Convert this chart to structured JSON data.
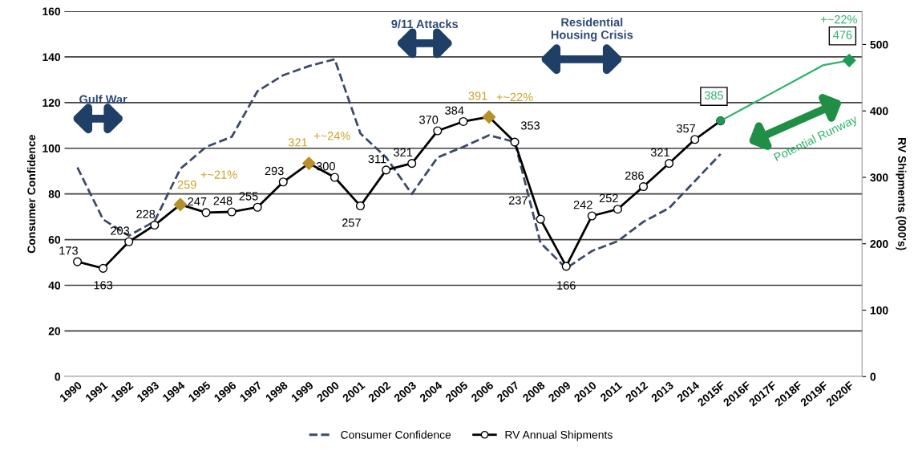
{
  "chart_data": {
    "type": "line",
    "ylabel": "Consumer Confidence",
    "y2label": "RV Shipments (000's)",
    "categories": [
      "1990",
      "1991",
      "1992",
      "1993",
      "1994",
      "1995",
      "1996",
      "1997",
      "1998",
      "1999",
      "2000",
      "2001",
      "2002",
      "2003",
      "2004",
      "2005",
      "2006",
      "2007",
      "2008",
      "2009",
      "2010",
      "2011",
      "2012",
      "2013",
      "2014",
      "2015F",
      "2016F",
      "2017F",
      "2018F",
      "2019F",
      "2020F"
    ],
    "ylim": [
      0,
      160
    ],
    "yticks": [
      0,
      20,
      40,
      60,
      80,
      100,
      120,
      140,
      160
    ],
    "y2lim": [
      0,
      550
    ],
    "y2ticks": [
      0,
      100,
      200,
      300,
      400,
      500
    ],
    "grid": "y",
    "legend": "bottom",
    "series": [
      {
        "name": "Consumer Confidence",
        "color": "#3b4a6b",
        "line_style": "dashed",
        "marker": "none",
        "values": [
          91.6,
          68.8,
          61.7,
          68,
          91,
          100.6,
          105,
          125,
          132,
          136,
          139,
          106.5,
          96,
          80,
          96,
          100.6,
          105.7,
          102.8,
          58.6,
          47.4,
          55,
          59.3,
          67.8,
          73.8,
          85.6,
          97.5,
          null,
          null,
          null,
          null,
          null
        ]
      },
      {
        "name": "RV Annual Shipments",
        "color": "#000000",
        "axis": "y2",
        "marker": "circle",
        "line_style": "solid",
        "values": [
          173,
          163,
          203,
          228,
          259,
          247,
          248,
          255,
          293,
          321,
          300,
          257,
          311,
          321,
          370,
          384,
          391,
          353,
          237,
          166,
          242,
          252,
          286,
          321,
          357,
          385,
          null,
          null,
          null,
          null,
          null
        ],
        "value_labels": [
          "173",
          "163",
          "203",
          "228",
          null,
          "247",
          "248",
          "255",
          "293",
          null,
          "300",
          "257",
          "311",
          "321",
          "370",
          "384",
          null,
          "353",
          "237",
          "166",
          "242",
          "252",
          "286",
          "321",
          "357",
          null,
          null,
          null,
          null,
          null,
          null
        ]
      },
      {
        "type": "scatter",
        "color": "#b8902a",
        "axis": "y2",
        "marker": "diamond",
        "values": [
          null,
          null,
          null,
          null,
          259,
          null,
          null,
          null,
          null,
          321,
          null,
          null,
          null,
          null,
          null,
          null,
          391,
          null,
          null,
          null,
          null,
          null,
          null,
          null,
          null,
          null,
          null,
          null,
          null,
          null,
          null
        ],
        "value_labels": [
          null,
          null,
          null,
          null,
          "259",
          null,
          null,
          null,
          null,
          "321",
          null,
          null,
          null,
          null,
          null,
          null,
          "391",
          null,
          null,
          null,
          null,
          null,
          null,
          null,
          null,
          null,
          null,
          null,
          null,
          null,
          null
        ]
      },
      {
        "color": "#2db36b",
        "axis": "y2",
        "marker": "none",
        "line_style": "solid",
        "values": [
          null,
          null,
          null,
          null,
          null,
          null,
          null,
          null,
          null,
          null,
          null,
          null,
          null,
          null,
          null,
          null,
          null,
          null,
          null,
          null,
          null,
          null,
          null,
          null,
          null,
          385,
          406,
          427,
          448,
          469,
          476
        ]
      },
      {
        "type": "scatter",
        "color": "#1f9a55",
        "axis": "y2",
        "marker": "circle",
        "values": [
          null,
          null,
          null,
          null,
          null,
          null,
          null,
          null,
          null,
          null,
          null,
          null,
          null,
          null,
          null,
          null,
          null,
          null,
          null,
          null,
          null,
          null,
          null,
          null,
          null,
          385,
          null,
          null,
          null,
          null,
          null
        ],
        "value_labels": [
          null,
          null,
          null,
          null,
          null,
          null,
          null,
          null,
          null,
          null,
          null,
          null,
          null,
          null,
          null,
          null,
          null,
          null,
          null,
          null,
          null,
          null,
          null,
          null,
          null,
          "385",
          null,
          null,
          null,
          null,
          null
        ]
      },
      {
        "type": "scatter",
        "color": "#1f9a55",
        "axis": "y2",
        "marker": "diamond",
        "values": [
          null,
          null,
          null,
          null,
          null,
          null,
          null,
          null,
          null,
          null,
          null,
          null,
          null,
          null,
          null,
          null,
          null,
          null,
          null,
          null,
          null,
          null,
          null,
          null,
          null,
          null,
          null,
          null,
          null,
          null,
          476
        ],
        "value_labels": [
          null,
          null,
          null,
          null,
          null,
          null,
          null,
          null,
          null,
          null,
          null,
          null,
          null,
          null,
          null,
          null,
          null,
          null,
          null,
          null,
          null,
          null,
          null,
          null,
          null,
          null,
          null,
          null,
          null,
          null,
          "476"
        ]
      }
    ],
    "annotations": [
      "Gulf War",
      "9/11 Attacks",
      "Residential\nHousing Crisis",
      "+~21%",
      "+~24%",
      "+~22%",
      "+~22%",
      "Potential Runway"
    ]
  }
}
